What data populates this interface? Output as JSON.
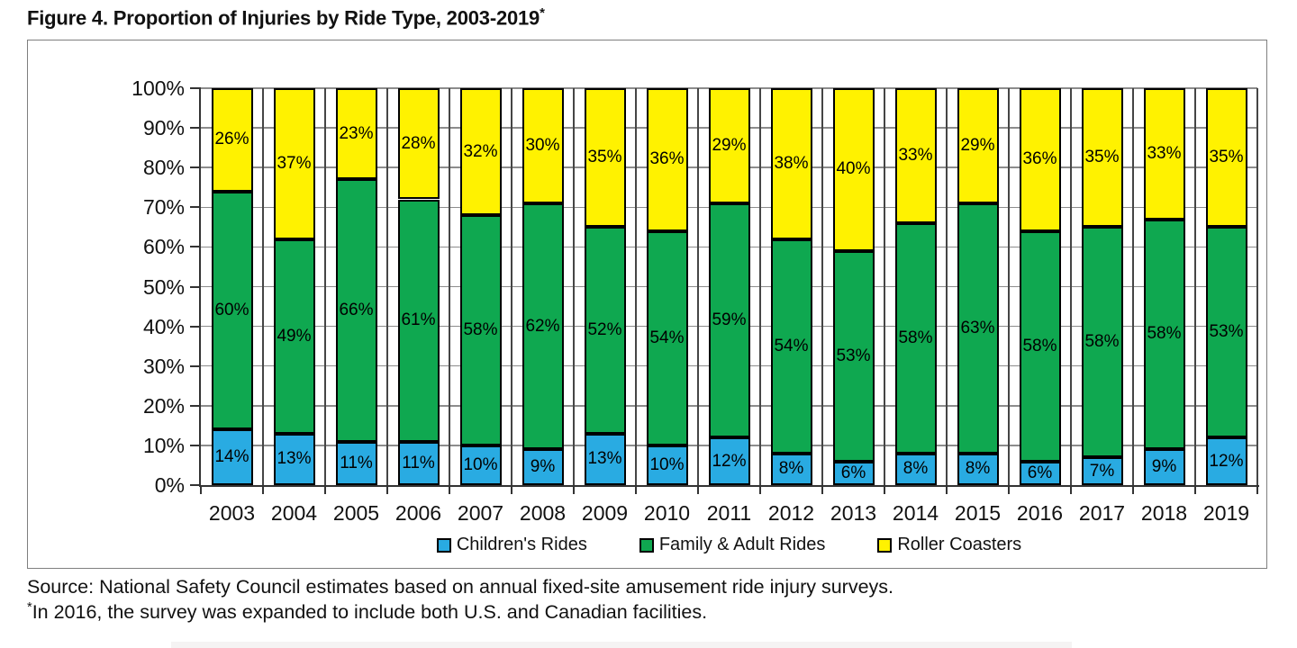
{
  "figure": {
    "title": "Figure 4. Proportion of Injuries by Ride Type, 2003-2019",
    "title_superscript": "*",
    "source": "Source: National Safety Council estimates based on annual fixed-site amusement ride injury surveys.",
    "footnote_superscript": "*",
    "footnote": "In 2016, the survey was expanded to include both U.S. and Canadian facilities."
  },
  "chart_data": {
    "type": "bar",
    "stacked": true,
    "title": "Figure 4. Proportion of Injuries by Ride Type, 2003-2019*",
    "categories": [
      "2003",
      "2004",
      "2005",
      "2006",
      "2007",
      "2008",
      "2009",
      "2010",
      "2011",
      "2012",
      "2013",
      "2014",
      "2015",
      "2016",
      "2017",
      "2018",
      "2019"
    ],
    "series": [
      {
        "name": "Children's Rides",
        "color": "#29ABE2",
        "values": [
          14,
          13,
          11,
          11,
          10,
          9,
          13,
          10,
          12,
          8,
          6,
          8,
          8,
          6,
          7,
          9,
          12
        ]
      },
      {
        "name": "Family & Adult Rides",
        "color": "#0FA850",
        "values": [
          60,
          49,
          66,
          61,
          58,
          62,
          52,
          54,
          59,
          54,
          53,
          58,
          63,
          58,
          58,
          58,
          53
        ]
      },
      {
        "name": "Roller Coasters",
        "color": "#FFF200",
        "values": [
          26,
          37,
          23,
          28,
          32,
          30,
          35,
          36,
          29,
          38,
          40,
          33,
          29,
          36,
          35,
          33,
          35
        ]
      }
    ],
    "y_ticks": [
      "0%",
      "10%",
      "20%",
      "30%",
      "40%",
      "50%",
      "60%",
      "70%",
      "80%",
      "90%",
      "100%"
    ],
    "ylim": [
      0,
      100
    ],
    "xlabel": "",
    "ylabel": "",
    "value_suffix": "%",
    "grid": "horizontal-and-vertical",
    "legend_position": "bottom"
  },
  "colors": {
    "axis": "#333333",
    "gridline_horizontal": "#8c8c8c",
    "gridline_vertical": "#454545",
    "bar_border": "#000000",
    "frame_border": "#7f7f7f"
  }
}
